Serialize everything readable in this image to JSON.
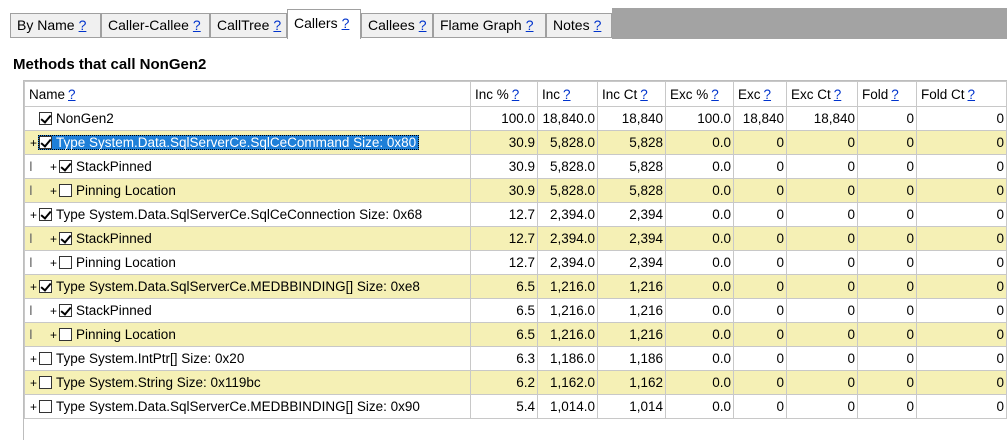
{
  "tabs": [
    {
      "label": "By Name",
      "help": "?"
    },
    {
      "label": "Caller-Callee",
      "help": "?"
    },
    {
      "label": "CallTree",
      "help": "?"
    },
    {
      "label": "Callers",
      "help": "?"
    },
    {
      "label": "Callees",
      "help": "?"
    },
    {
      "label": "Flame Graph",
      "help": "?"
    },
    {
      "label": "Notes",
      "help": "?"
    }
  ],
  "heading": "Methods that call NonGen2",
  "columns": [
    {
      "label": "Name",
      "help": "?"
    },
    {
      "label": "Inc %",
      "help": "?"
    },
    {
      "label": "Inc",
      "help": "?"
    },
    {
      "label": "Inc Ct",
      "help": "?"
    },
    {
      "label": "Exc %",
      "help": "?"
    },
    {
      "label": "Exc",
      "help": "?"
    },
    {
      "label": "Exc Ct",
      "help": "?"
    },
    {
      "label": "Fold",
      "help": "?"
    },
    {
      "label": "Fold Ct",
      "help": "?"
    }
  ],
  "rows": [
    {
      "prefix": "",
      "expander": "",
      "checked": true,
      "name": "NonGen2",
      "inc_pct": "100.0",
      "inc": "18,840.0",
      "inc_ct": "18,840",
      "exc_pct": "100.0",
      "exc": "18,840",
      "exc_ct": "18,840",
      "fold": "0",
      "fold_ct": "0"
    },
    {
      "prefix": "",
      "expander": "+",
      "checked": true,
      "name": "Type System.Data.SqlServerCe.SqlCeCommand Size: 0x80",
      "inc_pct": "30.9",
      "inc": "5,828.0",
      "inc_ct": "5,828",
      "exc_pct": "0.0",
      "exc": "0",
      "exc_ct": "0",
      "fold": "0",
      "fold_ct": "0"
    },
    {
      "prefix": "I",
      "expander": "+",
      "checked": true,
      "name": "StackPinned",
      "inc_pct": "30.9",
      "inc": "5,828.0",
      "inc_ct": "5,828",
      "exc_pct": "0.0",
      "exc": "0",
      "exc_ct": "0",
      "fold": "0",
      "fold_ct": "0"
    },
    {
      "prefix": "I",
      "expander": "+",
      "checked": false,
      "name": "Pinning Location",
      "inc_pct": "30.9",
      "inc": "5,828.0",
      "inc_ct": "5,828",
      "exc_pct": "0.0",
      "exc": "0",
      "exc_ct": "0",
      "fold": "0",
      "fold_ct": "0"
    },
    {
      "prefix": "",
      "expander": "+",
      "checked": true,
      "name": "Type System.Data.SqlServerCe.SqlCeConnection Size: 0x68",
      "inc_pct": "12.7",
      "inc": "2,394.0",
      "inc_ct": "2,394",
      "exc_pct": "0.0",
      "exc": "0",
      "exc_ct": "0",
      "fold": "0",
      "fold_ct": "0"
    },
    {
      "prefix": "I",
      "expander": "+",
      "checked": true,
      "name": "StackPinned",
      "inc_pct": "12.7",
      "inc": "2,394.0",
      "inc_ct": "2,394",
      "exc_pct": "0.0",
      "exc": "0",
      "exc_ct": "0",
      "fold": "0",
      "fold_ct": "0"
    },
    {
      "prefix": "I",
      "expander": "+",
      "checked": false,
      "name": "Pinning Location",
      "inc_pct": "12.7",
      "inc": "2,394.0",
      "inc_ct": "2,394",
      "exc_pct": "0.0",
      "exc": "0",
      "exc_ct": "0",
      "fold": "0",
      "fold_ct": "0"
    },
    {
      "prefix": "",
      "expander": "+",
      "checked": true,
      "name": "Type System.Data.SqlServerCe.MEDBBINDING[] Size: 0xe8",
      "inc_pct": "6.5",
      "inc": "1,216.0",
      "inc_ct": "1,216",
      "exc_pct": "0.0",
      "exc": "0",
      "exc_ct": "0",
      "fold": "0",
      "fold_ct": "0"
    },
    {
      "prefix": "I",
      "expander": "+",
      "checked": true,
      "name": "StackPinned",
      "inc_pct": "6.5",
      "inc": "1,216.0",
      "inc_ct": "1,216",
      "exc_pct": "0.0",
      "exc": "0",
      "exc_ct": "0",
      "fold": "0",
      "fold_ct": "0"
    },
    {
      "prefix": "I",
      "expander": "+",
      "checked": false,
      "name": "Pinning Location",
      "inc_pct": "6.5",
      "inc": "1,216.0",
      "inc_ct": "1,216",
      "exc_pct": "0.0",
      "exc": "0",
      "exc_ct": "0",
      "fold": "0",
      "fold_ct": "0"
    },
    {
      "prefix": "",
      "expander": "+",
      "checked": false,
      "name": "Type System.IntPtr[] Size: 0x20",
      "inc_pct": "6.3",
      "inc": "1,186.0",
      "inc_ct": "1,186",
      "exc_pct": "0.0",
      "exc": "0",
      "exc_ct": "0",
      "fold": "0",
      "fold_ct": "0"
    },
    {
      "prefix": "",
      "expander": "+",
      "checked": false,
      "name": "Type System.String Size: 0x119bc",
      "inc_pct": "6.2",
      "inc": "1,162.0",
      "inc_ct": "1,162",
      "exc_pct": "0.0",
      "exc": "0",
      "exc_ct": "0",
      "fold": "0",
      "fold_ct": "0"
    },
    {
      "prefix": "",
      "expander": "+",
      "checked": false,
      "name": "Type System.Data.SqlServerCe.MEDBBINDING[] Size: 0x90",
      "inc_pct": "5.4",
      "inc": "1,014.0",
      "inc_ct": "1,014",
      "exc_pct": "0.0",
      "exc": "0",
      "exc_ct": "0",
      "fold": "0",
      "fold_ct": "0"
    }
  ],
  "colors": {
    "highlight_row": "#f5f0b5",
    "selection": "#1e7fd8",
    "link": "#0033cc",
    "tabstrip": "#a3a3a3"
  }
}
